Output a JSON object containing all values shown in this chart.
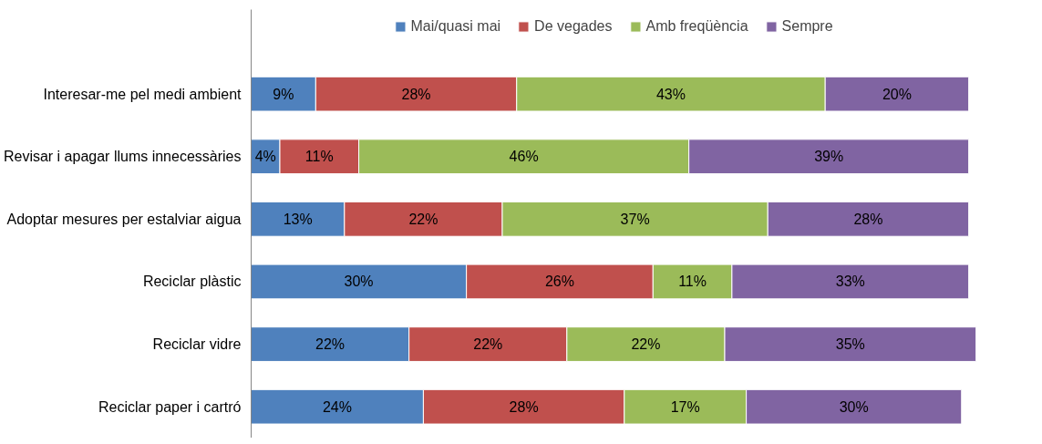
{
  "chart_data": {
    "type": "bar",
    "orientation": "horizontal",
    "stacked": true,
    "legend": "top",
    "grid": false,
    "categories": [
      "Interesar-me pel medi ambient",
      "Revisar i apagar llums innecessàries",
      "Adoptar mesures per estalviar aigua",
      "Reciclar plàstic",
      "Reciclar vidre",
      "Reciclar paper i cartró"
    ],
    "series": [
      {
        "name": "Mai/quasi mai",
        "color": "#4f81bd",
        "values": [
          9,
          4,
          13,
          30,
          22,
          24
        ],
        "value_labels": [
          "9%",
          "4%",
          "13%",
          "30%",
          "22%",
          "24%"
        ]
      },
      {
        "name": "De vegades",
        "color": "#c0504d",
        "values": [
          28,
          11,
          22,
          26,
          22,
          28
        ],
        "value_labels": [
          "28%",
          "11%",
          "22%",
          "26%",
          "22%",
          "28%"
        ]
      },
      {
        "name": "Amb freqüència",
        "color": "#9bbb59",
        "values": [
          43,
          46,
          37,
          11,
          22,
          17
        ],
        "value_labels": [
          "43%",
          "46%",
          "37%",
          "11%",
          "22%",
          "17%"
        ]
      },
      {
        "name": "Sempre",
        "color": "#8064a2",
        "values": [
          20,
          39,
          28,
          33,
          35,
          30
        ],
        "value_labels": [
          "20%",
          "39%",
          "28%",
          "33%",
          "35%",
          "30%"
        ]
      }
    ]
  }
}
